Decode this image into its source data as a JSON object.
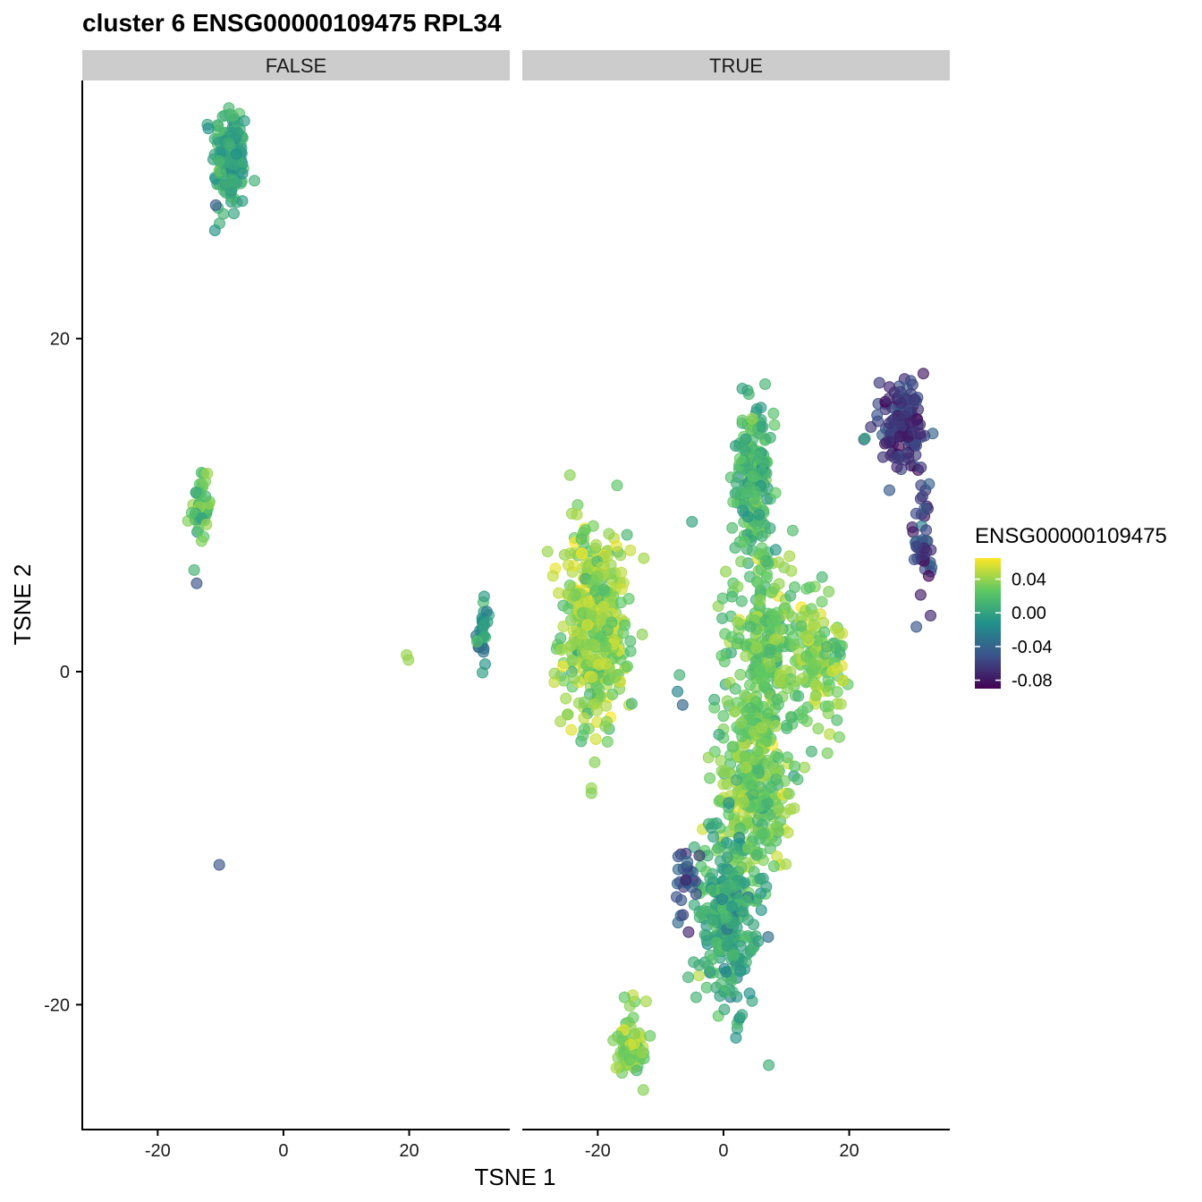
{
  "chart_data": {
    "type": "scatter",
    "title": "cluster 6 ENSG00000109475 RPL34",
    "xlabel": "TSNE 1",
    "ylabel": "TSNE 2",
    "xlim": [
      -32,
      36
    ],
    "ylim": [
      -27.5,
      35.5
    ],
    "x_ticks": [
      -20,
      0,
      20
    ],
    "y_ticks": [
      -20,
      0,
      20
    ],
    "x_tick_labels": [
      "-20",
      "0",
      "20"
    ],
    "y_tick_labels": [
      "-20",
      "0",
      "20"
    ],
    "grid": false,
    "legend": {
      "title": "ENSG00000109475",
      "position": "right",
      "type": "colorbar",
      "range": [
        -0.09,
        0.065
      ],
      "ticks": [
        0.04,
        0.0,
        -0.04,
        -0.08
      ],
      "tick_labels": [
        "0.04",
        "0.00",
        "-0.04",
        "-0.08"
      ],
      "colors": [
        "#440154",
        "#3B528B",
        "#21908C",
        "#5DC863",
        "#FDE725"
      ]
    },
    "panels": [
      {
        "label": "FALSE",
        "clusters": [
          {
            "cx": -8.5,
            "cy": 30.8,
            "sx": 1.4,
            "sy": 1.8,
            "n": 130,
            "value": 0.005
          },
          {
            "cx": -13.2,
            "cy": 9.8,
            "sx": 0.8,
            "sy": 0.9,
            "n": 45,
            "value": 0.02
          },
          {
            "cx": 31.8,
            "cy": 2.3,
            "sx": 0.55,
            "sy": 1.1,
            "n": 32,
            "value": -0.01
          }
        ],
        "points": [
          {
            "x": -14.2,
            "y": 6.1,
            "v": 0.01
          },
          {
            "x": -13.8,
            "y": 5.3,
            "v": -0.05
          },
          {
            "x": -10.2,
            "y": -11.6,
            "v": -0.05
          },
          {
            "x": 19.6,
            "y": 1.0,
            "v": 0.04
          },
          {
            "x": 19.9,
            "y": 0.7,
            "v": 0.04
          },
          {
            "x": -10.9,
            "y": 26.5,
            "v": -0.01
          },
          {
            "x": 30.8,
            "y": 1.8,
            "v": 0.02
          }
        ]
      },
      {
        "label": "TRUE",
        "clusters": [
          {
            "cx": -20.5,
            "cy": 2.8,
            "sx": 2.6,
            "sy": 3.0,
            "n": 420,
            "value": 0.038
          },
          {
            "cx": 4.8,
            "cy": 11.5,
            "sx": 1.6,
            "sy": 2.6,
            "n": 190,
            "value": 0.015
          },
          {
            "cx": 6.5,
            "cy": 1.5,
            "sx": 3.0,
            "sy": 2.8,
            "n": 260,
            "value": 0.028
          },
          {
            "cx": 15.5,
            "cy": 0.5,
            "sx": 2.0,
            "sy": 1.8,
            "n": 120,
            "value": 0.035
          },
          {
            "cx": 5.0,
            "cy": -6.5,
            "sx": 3.2,
            "sy": 2.6,
            "n": 290,
            "value": 0.03
          },
          {
            "cx": 1.0,
            "cy": -15.0,
            "sx": 2.6,
            "sy": 2.8,
            "n": 280,
            "value": 0.005
          },
          {
            "cx": -14.8,
            "cy": -22.5,
            "sx": 1.3,
            "sy": 1.2,
            "n": 70,
            "value": 0.035
          },
          {
            "cx": 28.5,
            "cy": 14.5,
            "sx": 1.8,
            "sy": 1.2,
            "n": 130,
            "value": -0.065
          },
          {
            "cx": 31.5,
            "cy": 8.0,
            "sx": 0.8,
            "sy": 2.0,
            "n": 45,
            "value": -0.06
          },
          {
            "cx": -6.0,
            "cy": -12.5,
            "sx": 1.2,
            "sy": 1.2,
            "n": 28,
            "value": -0.055
          }
        ],
        "points": [
          {
            "x": -5.0,
            "y": 9.0,
            "v": 0.0
          },
          {
            "x": -7.0,
            "y": -0.2,
            "v": 0.01
          },
          {
            "x": -7.3,
            "y": -1.2,
            "v": -0.02
          },
          {
            "x": -21.0,
            "y": -7.0,
            "v": 0.04
          },
          {
            "x": -21.0,
            "y": -7.3,
            "v": 0.035
          },
          {
            "x": 3.0,
            "y": 17.0,
            "v": 0.0
          },
          {
            "x": 22.5,
            "y": 14.0,
            "v": 0.0
          },
          {
            "x": -6.5,
            "y": -2.0,
            "v": -0.04
          },
          {
            "x": 14.0,
            "y": -4.8,
            "v": 0.01
          }
        ]
      }
    ]
  }
}
